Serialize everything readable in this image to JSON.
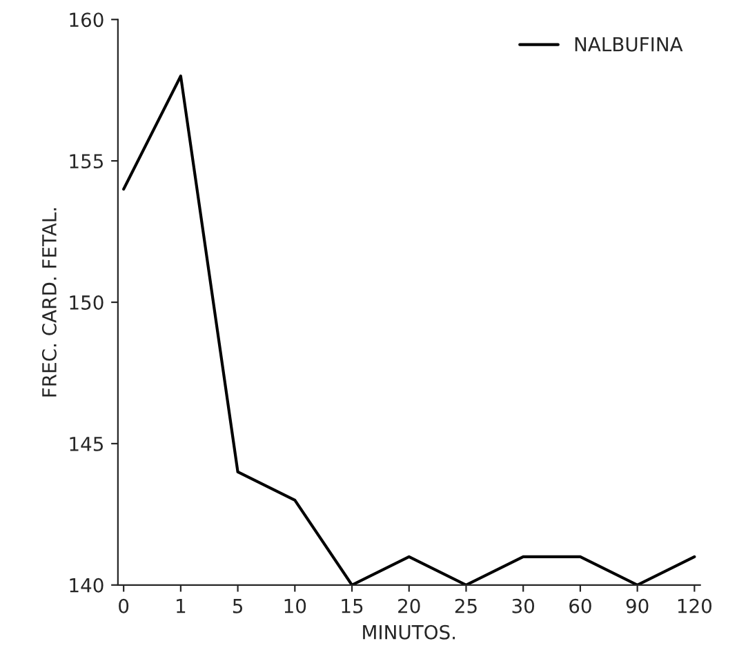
{
  "chart_data": {
    "type": "line",
    "xlabel": "MINUTOS.",
    "ylabel": "FREC. CARD. FETAL.",
    "categories": [
      "0",
      "1",
      "5",
      "10",
      "15",
      "20",
      "25",
      "30",
      "60",
      "90",
      "120"
    ],
    "series": [
      {
        "name": "NALBUFINA",
        "color": "#000000",
        "values": [
          154,
          158,
          144,
          143,
          140,
          141,
          140,
          141,
          141,
          140,
          141
        ]
      }
    ],
    "ylim": [
      140,
      160
    ],
    "yticks": [
      140,
      145,
      150,
      155,
      160
    ],
    "legend": "top right",
    "marker": "none",
    "line_style": "solid",
    "grid": false
  }
}
